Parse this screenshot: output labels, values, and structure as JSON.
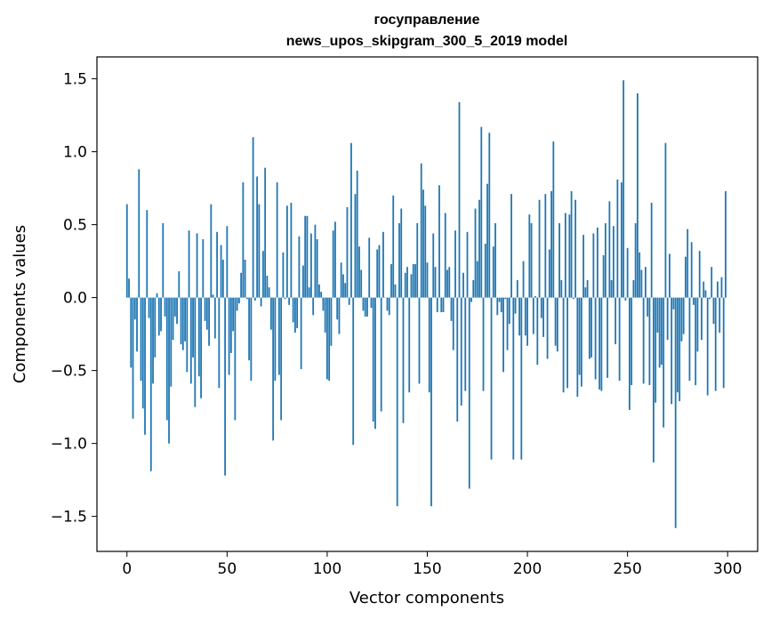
{
  "chart_data": {
    "type": "bar",
    "title": "госуправление",
    "subtitle": "news_upos_skipgram_300_5_2019 model",
    "xlabel": "Vector components",
    "ylabel": "Components values",
    "xlim": [
      -15,
      315
    ],
    "ylim": [
      -1.74,
      1.65
    ],
    "xticks": [
      0,
      50,
      100,
      150,
      200,
      250,
      300
    ],
    "yticks": [
      -1.5,
      -1.0,
      -0.5,
      0.0,
      0.5,
      1.0,
      1.5
    ],
    "ytick_labels": [
      "−1.5",
      "−1.0",
      "−0.5",
      "0.0",
      "0.5",
      "1.0",
      "1.5"
    ],
    "bar_color": "#1f77b4",
    "values": [
      0.64,
      0.13,
      -0.48,
      -0.83,
      -0.15,
      -0.37,
      0.88,
      -0.57,
      -0.76,
      -0.94,
      0.6,
      -0.14,
      -1.19,
      -0.59,
      -0.41,
      0.03,
      -0.26,
      -0.23,
      0.51,
      -0.13,
      -0.84,
      -1.0,
      -0.61,
      -0.29,
      -0.13,
      -0.18,
      0.18,
      -0.32,
      -0.36,
      -0.3,
      -0.51,
      0.46,
      -0.59,
      -0.41,
      -0.75,
      0.44,
      -0.54,
      -0.69,
      0.4,
      -0.16,
      -0.22,
      -0.33,
      0.64,
      0.02,
      -0.28,
      0.45,
      -0.62,
      0.36,
      0.26,
      -1.22,
      0.49,
      -0.53,
      -0.38,
      -0.23,
      -0.84,
      -0.09,
      -0.04,
      0.17,
      0.79,
      0.26,
      -0.01,
      -0.43,
      -0.57,
      1.1,
      -0.02,
      0.83,
      0.64,
      -0.06,
      0.32,
      0.89,
      0.15,
      0.07,
      -0.22,
      -0.98,
      -0.57,
      0.79,
      -0.53,
      -0.84,
      0.31,
      -0.01,
      0.63,
      -0.05,
      0.65,
      -0.17,
      -0.24,
      -0.21,
      0.42,
      -0.49,
      0.22,
      0.56,
      0.56,
      0.07,
      0.44,
      -0.12,
      0.5,
      0.4,
      0.09,
      0.04,
      -0.09,
      -0.24,
      -0.56,
      -0.57,
      -0.33,
      0.46,
      0.52,
      -0.15,
      -0.25,
      0.24,
      0.16,
      0.1,
      0.62,
      -0.05,
      1.06,
      -1.01,
      0.71,
      0.87,
      0.35,
      0.19,
      -0.09,
      -0.13,
      -0.13,
      0.41,
      -0.07,
      -0.85,
      -0.9,
      0.33,
      0.36,
      -0.78,
      0.45,
      0.0,
      -0.09,
      -0.12,
      0.23,
      0.7,
      0.09,
      -1.43,
      0.51,
      0.61,
      -0.86,
      0.17,
      0.21,
      -0.65,
      0.16,
      0.23,
      0.23,
      0.51,
      -0.59,
      0.92,
      0.74,
      0.63,
      0.24,
      -0.65,
      -1.43,
      0.44,
      0.21,
      -0.1,
      0.77,
      -0.1,
      -0.1,
      0.58,
      0.19,
      0.21,
      -0.16,
      -0.36,
      0.46,
      -0.85,
      1.34,
      -0.74,
      0.17,
      -0.64,
      0.45,
      -1.31,
      -0.03,
      0.12,
      0.61,
      0.25,
      0.67,
      1.17,
      -0.64,
      0.37,
      0.78,
      1.13,
      -1.11,
      0.35,
      0.51,
      -0.12,
      -0.03,
      -0.1,
      -0.51,
      -0.01,
      -0.36,
      -0.18,
      0.71,
      -1.11,
      -0.11,
      0.12,
      -0.26,
      -1.11,
      0.25,
      -0.26,
      -0.33,
      0.57,
      0.51,
      -0.25,
      0.01,
      -0.46,
      0.67,
      -0.14,
      -0.27,
      0.71,
      -0.42,
      0.33,
      0.73,
      1.07,
      -0.33,
      -0.37,
      0.51,
      0.12,
      -0.65,
      0.58,
      -0.62,
      0.57,
      0.73,
      -0.01,
      0.67,
      -0.68,
      -0.53,
      -0.61,
      0.43,
      0.07,
      0.12,
      -0.42,
      -0.41,
      0.44,
      -0.56,
      0.48,
      -0.63,
      -0.64,
      0.29,
      0.51,
      -0.55,
      0.66,
      0.12,
      0.49,
      -0.32,
      0.81,
      -0.57,
      0.79,
      1.49,
      -0.02,
      0.34,
      -0.77,
      -0.6,
      0.12,
      0.51,
      1.4,
      0.31,
      0.19,
      -0.59,
      0.21,
      -0.13,
      -0.6,
      0.65,
      -1.13,
      -0.72,
      -0.24,
      -0.48,
      -0.46,
      -0.89,
      1.06,
      -0.29,
      0.3,
      -0.73,
      -0.08,
      -1.58,
      -0.65,
      -0.71,
      -0.3,
      -0.25,
      0.28,
      0.47,
      -0.57,
      0.38,
      -0.05,
      -0.6,
      -0.37,
      0.32,
      -0.29,
      0.11,
      0.05,
      -0.67,
      -0.01,
      0.21,
      -0.18,
      -0.64,
      0.11,
      -0.24,
      0.14,
      -0.62,
      0.73
    ]
  }
}
